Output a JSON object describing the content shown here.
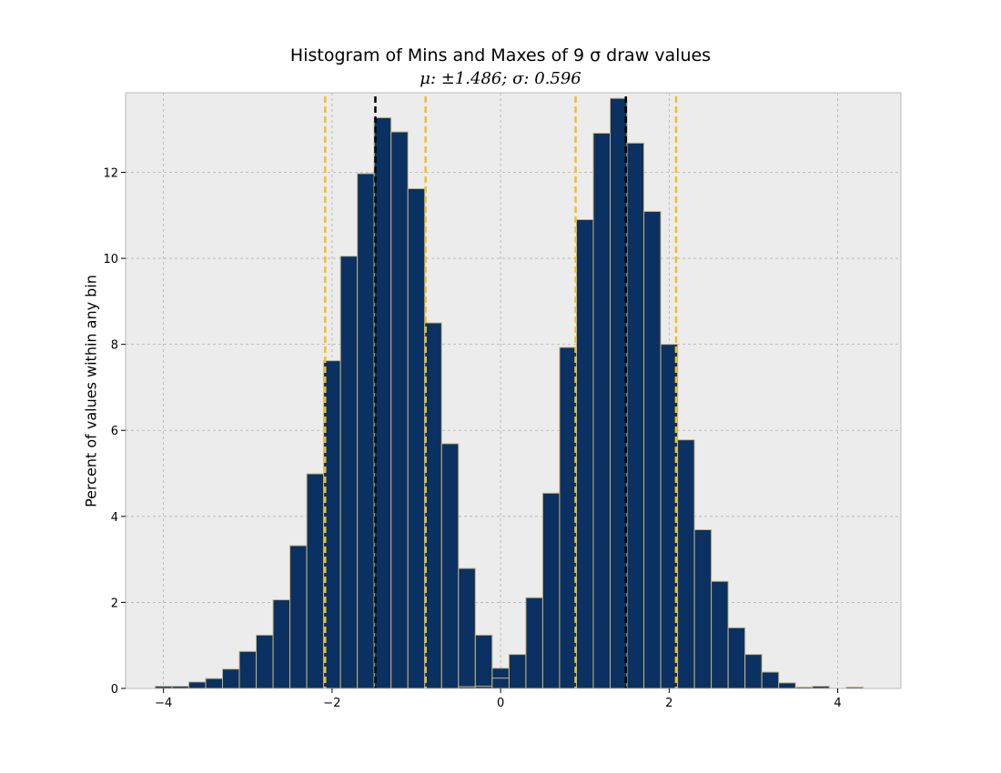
{
  "chart_data": {
    "type": "bar",
    "title": "Histogram of Mins and Maxes of 9 σ draw values",
    "subtitle": "μ: ±1.486; σ: 0.596",
    "xlabel": "",
    "ylabel": "Percent of values within any bin",
    "xlim": [
      -4.45,
      4.75
    ],
    "ylim": [
      0,
      13.85
    ],
    "xticks": [
      -4,
      -2,
      0,
      2,
      4
    ],
    "xtick_labels": [
      "−4",
      "−2",
      "0",
      "2",
      "4"
    ],
    "yticks": [
      0,
      2,
      4,
      6,
      8,
      10,
      12
    ],
    "ytick_labels": [
      "0",
      "2",
      "4",
      "6",
      "8",
      "10",
      "12"
    ],
    "grid": true,
    "colors": {
      "bar_fill": "#0a3161",
      "bar_edge": "#c9b37a",
      "axes_bg": "#ececec",
      "mean_line": "#000000",
      "sigma_line": "#f0c020"
    },
    "series": [
      {
        "bin_width": 0.2,
        "bins": [
          {
            "x0": -4.1,
            "value": 0.05
          },
          {
            "x0": -3.9,
            "value": 0.05
          },
          {
            "x0": -3.7,
            "value": 0.15
          },
          {
            "x0": -3.5,
            "value": 0.23
          },
          {
            "x0": -3.3,
            "value": 0.45
          },
          {
            "x0": -3.1,
            "value": 0.86
          },
          {
            "x0": -2.9,
            "value": 1.24
          },
          {
            "x0": -2.7,
            "value": 2.06
          },
          {
            "x0": -2.5,
            "value": 3.32
          },
          {
            "x0": -2.3,
            "value": 4.99
          },
          {
            "x0": -2.1,
            "value": 7.62
          },
          {
            "x0": -1.9,
            "value": 10.05
          },
          {
            "x0": -1.7,
            "value": 11.97
          },
          {
            "x0": -1.5,
            "value": 13.27
          },
          {
            "x0": -1.3,
            "value": 12.94
          },
          {
            "x0": -1.1,
            "value": 11.62
          },
          {
            "x0": -0.9,
            "value": 8.5
          },
          {
            "x0": -0.7,
            "value": 5.69
          },
          {
            "x0": -0.5,
            "value": 2.79
          },
          {
            "x0": -0.3,
            "value": 1.24
          },
          {
            "x0": -0.1,
            "value": 0.47
          },
          {
            "x0": 0.1,
            "value": 0.79
          },
          {
            "x0": 0.3,
            "value": 2.11
          },
          {
            "x0": 0.5,
            "value": 4.54
          },
          {
            "x0": 0.7,
            "value": 7.93
          },
          {
            "x0": 0.9,
            "value": 10.9
          },
          {
            "x0": 1.1,
            "value": 12.91
          },
          {
            "x0": 1.3,
            "value": 13.72
          },
          {
            "x0": 1.5,
            "value": 12.68
          },
          {
            "x0": 1.7,
            "value": 11.09
          },
          {
            "x0": 1.9,
            "value": 8.0
          },
          {
            "x0": 2.1,
            "value": 5.78
          },
          {
            "x0": 2.3,
            "value": 3.69
          },
          {
            "x0": 2.5,
            "value": 2.49
          },
          {
            "x0": 2.7,
            "value": 1.41
          },
          {
            "x0": 2.9,
            "value": 0.79
          },
          {
            "x0": 3.1,
            "value": 0.38
          },
          {
            "x0": 3.3,
            "value": 0.13
          },
          {
            "x0": 3.5,
            "value": 0.03
          },
          {
            "x0": 3.7,
            "value": 0.05
          },
          {
            "x0": 4.1,
            "value": 0.03
          }
        ],
        "overlay_bins": [
          {
            "x0": -0.5,
            "value": 0.04
          },
          {
            "x0": -0.3,
            "value": 0.05
          },
          {
            "x0": -0.1,
            "value": 0.24
          }
        ]
      }
    ],
    "vertical_lines": [
      {
        "x": -1.486,
        "kind": "mean"
      },
      {
        "x": 1.486,
        "kind": "mean"
      },
      {
        "x": -2.082,
        "kind": "sigma"
      },
      {
        "x": -0.89,
        "kind": "sigma"
      },
      {
        "x": 0.89,
        "kind": "sigma"
      },
      {
        "x": 2.082,
        "kind": "sigma"
      }
    ]
  }
}
